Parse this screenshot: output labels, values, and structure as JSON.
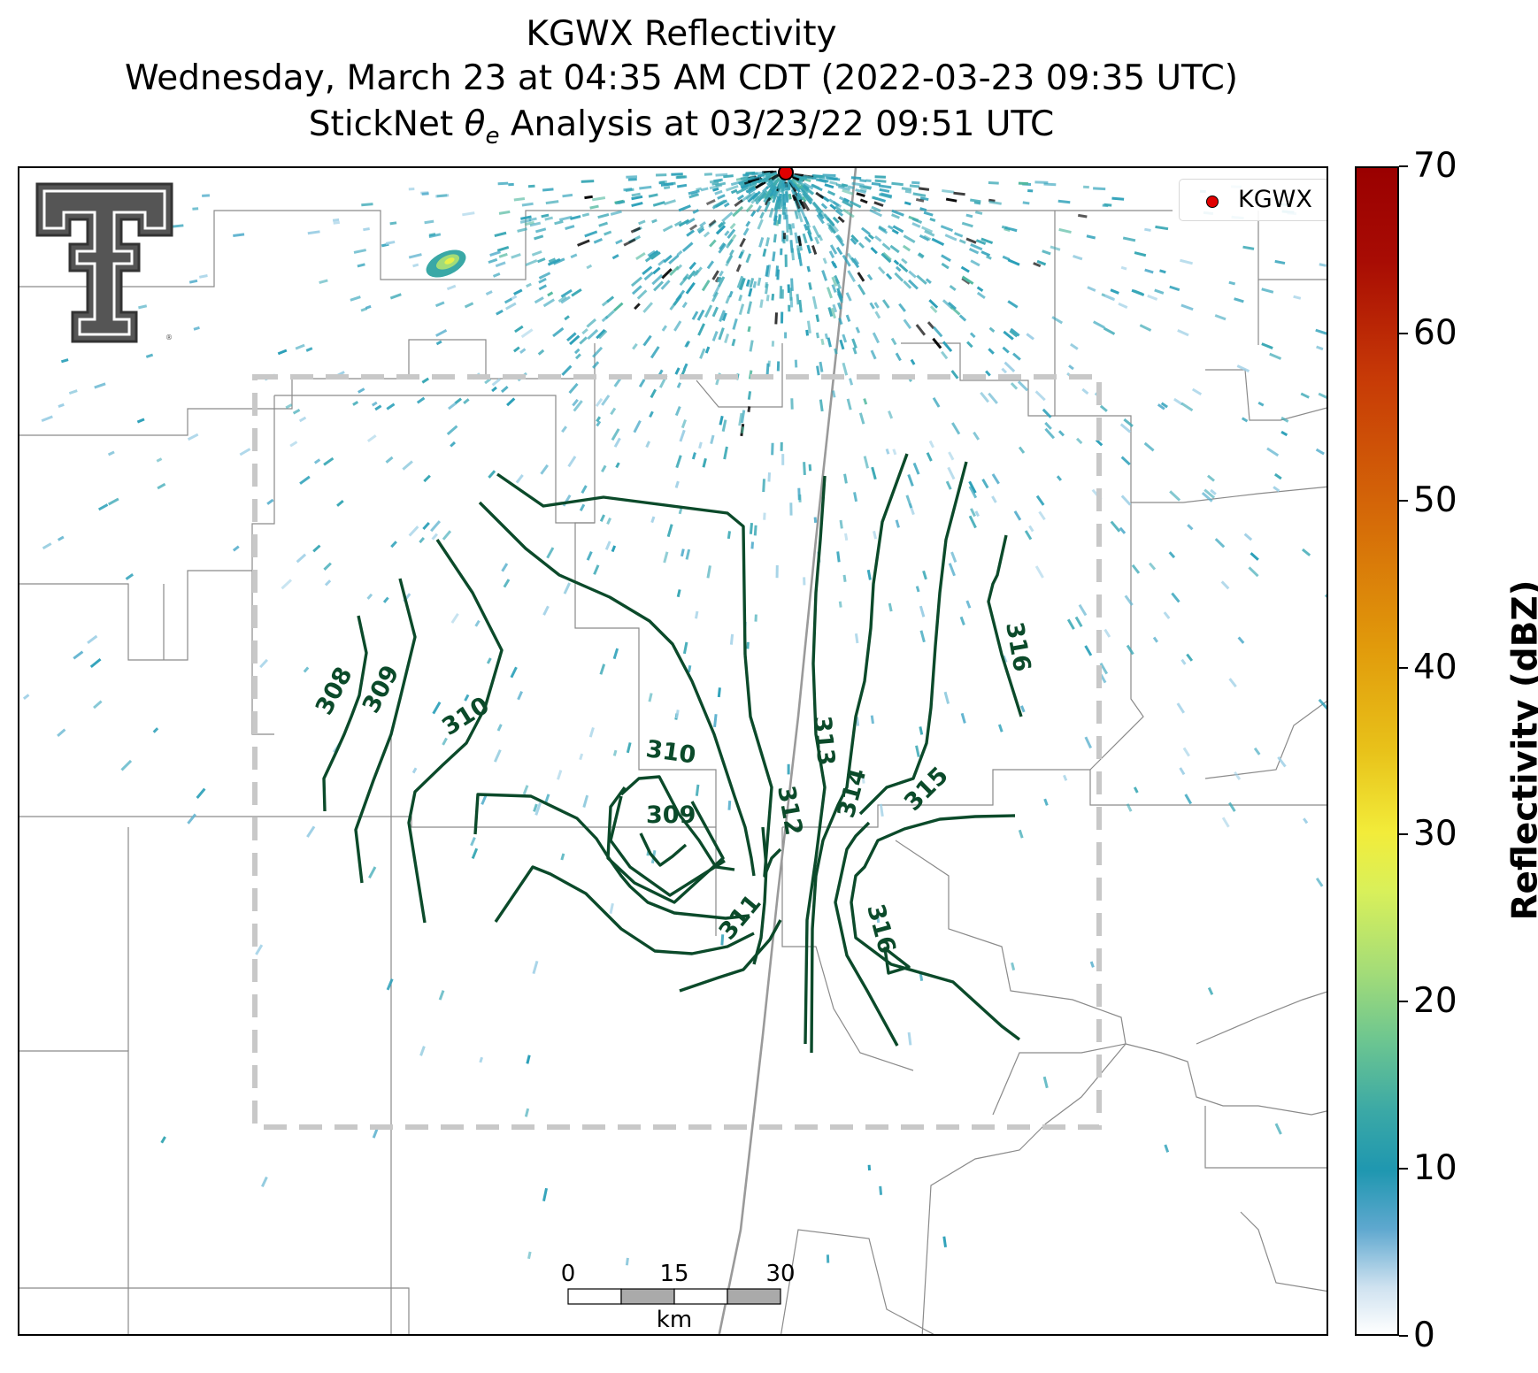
{
  "title": {
    "line1": "KGWX Reflectivity",
    "line2": "Wednesday, March 23 at 04:35 AM CDT (2022-03-23 09:35 UTC)",
    "line3": "StickNet θe Analysis at 03/23/22 09:51 UTC"
  },
  "legend": {
    "label": "KGWX",
    "marker_color": "#e00000"
  },
  "colorbar": {
    "title": "Reflectivity (dBZ)",
    "ticks": [
      "0",
      "10",
      "20",
      "30",
      "40",
      "50",
      "60",
      "70"
    ],
    "min": 0,
    "max": 70
  },
  "contours": {
    "color": "#0b4a2a",
    "labels": [
      "308",
      "309",
      "310",
      "310",
      "309",
      "311",
      "312",
      "313",
      "314",
      "315",
      "316",
      "316"
    ]
  },
  "scale_bar": {
    "ticks": [
      "0",
      "15",
      "30"
    ],
    "unit": "km"
  },
  "logo": {
    "description": "Texas Tech double-T logo"
  },
  "colors": {
    "radar_echo": "#2a9fb8",
    "analysis_box": "#c8c8c8",
    "county_lines": "#8a8a8a"
  }
}
